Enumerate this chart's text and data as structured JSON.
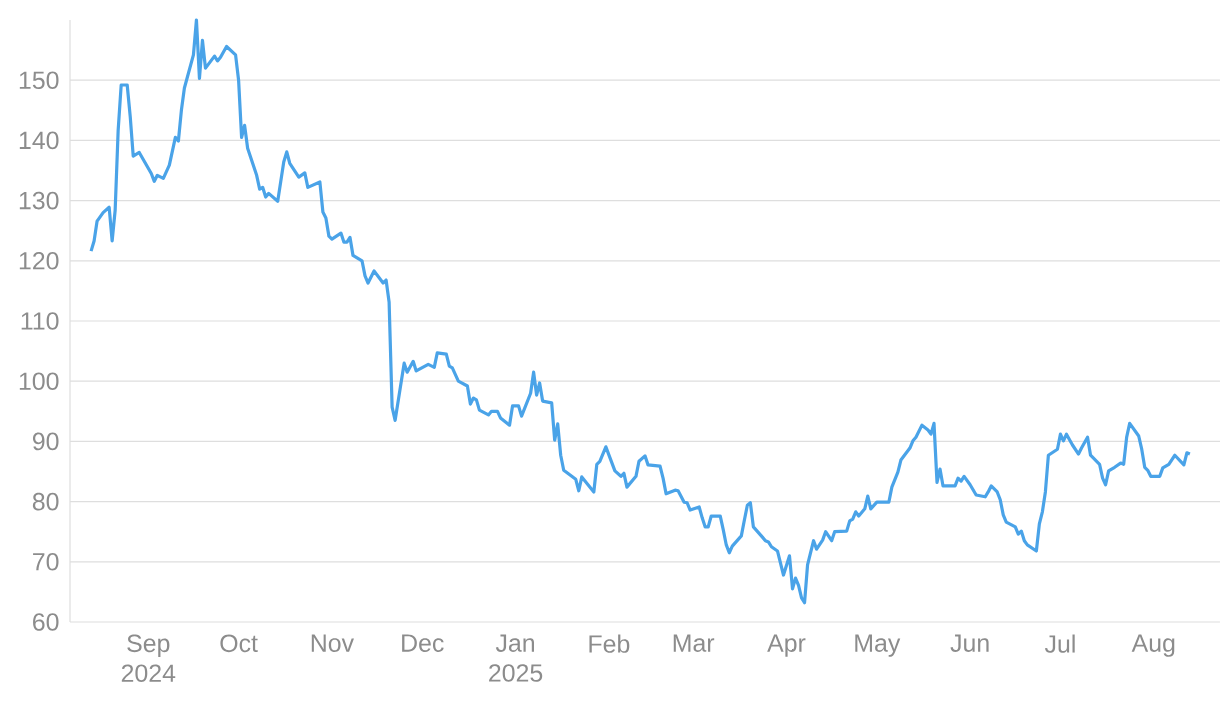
{
  "chart_data": {
    "type": "line",
    "color": "#4aa3e8",
    "grid": "y",
    "xlim": [
      "2024-08-06",
      "2025-08-23"
    ],
    "ylim": [
      60,
      160
    ],
    "yticks": [
      60,
      70,
      80,
      90,
      100,
      110,
      120,
      130,
      140,
      150
    ],
    "xticks": [
      {
        "value": "2024-09-01",
        "label": "Sep 2024"
      },
      {
        "value": "2024-10-01",
        "label": "Oct"
      },
      {
        "value": "2024-11-01",
        "label": "Nov"
      },
      {
        "value": "2024-12-01",
        "label": "Dec"
      },
      {
        "value": "2025-01-01",
        "label": "Jan 2025"
      },
      {
        "value": "2025-02-01",
        "label": "Feb"
      },
      {
        "value": "2025-03-01",
        "label": "Mar"
      },
      {
        "value": "2025-04-01",
        "label": "Apr"
      },
      {
        "value": "2025-05-01",
        "label": "May"
      },
      {
        "value": "2025-06-01",
        "label": "Jun"
      },
      {
        "value": "2025-07-01",
        "label": "Jul"
      },
      {
        "value": "2025-08-01",
        "label": "Aug"
      }
    ],
    "x": [
      "2024-08-13",
      "2024-08-14",
      "2024-08-15",
      "2024-08-17",
      "2024-08-19",
      "2024-08-20",
      "2024-08-21",
      "2024-08-22",
      "2024-08-23",
      "2024-08-25",
      "2024-08-26",
      "2024-08-27",
      "2024-08-29",
      "2024-09-02",
      "2024-09-03",
      "2024-09-04",
      "2024-09-06",
      "2024-09-08",
      "2024-09-10",
      "2024-09-11",
      "2024-09-12",
      "2024-09-13",
      "2024-09-16",
      "2024-09-17",
      "2024-09-18",
      "2024-09-19",
      "2024-09-20",
      "2024-09-23",
      "2024-09-24",
      "2024-09-25",
      "2024-09-27",
      "2024-09-30",
      "2024-10-01",
      "2024-10-02",
      "2024-10-03",
      "2024-10-04",
      "2024-10-07",
      "2024-10-08",
      "2024-10-09",
      "2024-10-10",
      "2024-10-11",
      "2024-10-14",
      "2024-10-16",
      "2024-10-17",
      "2024-10-18",
      "2024-10-21",
      "2024-10-23",
      "2024-10-24",
      "2024-10-28",
      "2024-10-29",
      "2024-10-30",
      "2024-10-31",
      "2024-11-01",
      "2024-11-04",
      "2024-11-05",
      "2024-11-06",
      "2024-11-07",
      "2024-11-08",
      "2024-11-11",
      "2024-11-12",
      "2024-11-13",
      "2024-11-15",
      "2024-11-18",
      "2024-11-19",
      "2024-11-20",
      "2024-11-21",
      "2024-11-22",
      "2024-11-25",
      "2024-11-26",
      "2024-11-28",
      "2024-11-29",
      "2024-12-03",
      "2024-12-05",
      "2024-12-06",
      "2024-12-09",
      "2024-12-10",
      "2024-12-11",
      "2024-12-13",
      "2024-12-16",
      "2024-12-17",
      "2024-12-18",
      "2024-12-19",
      "2024-12-20",
      "2024-12-23",
      "2024-12-24",
      "2024-12-26",
      "2024-12-27",
      "2024-12-30",
      "2024-12-31",
      "2025-01-02",
      "2025-01-03",
      "2025-01-06",
      "2025-01-07",
      "2025-01-08",
      "2025-01-09",
      "2025-01-10",
      "2025-01-13",
      "2025-01-14",
      "2025-01-15",
      "2025-01-16",
      "2025-01-17",
      "2025-01-21",
      "2025-01-22",
      "2025-01-23",
      "2025-01-27",
      "2025-01-28",
      "2025-01-29",
      "2025-01-31",
      "2025-02-03",
      "2025-02-05",
      "2025-02-06",
      "2025-02-07",
      "2025-02-10",
      "2025-02-11",
      "2025-02-13",
      "2025-02-14",
      "2025-02-18",
      "2025-02-19",
      "2025-02-20",
      "2025-02-23",
      "2025-02-24",
      "2025-02-26",
      "2025-02-27",
      "2025-02-28",
      "2025-03-03",
      "2025-03-04",
      "2025-03-05",
      "2025-03-06",
      "2025-03-07",
      "2025-03-10",
      "2025-03-11",
      "2025-03-12",
      "2025-03-13",
      "2025-03-14",
      "2025-03-17",
      "2025-03-18",
      "2025-03-19",
      "2025-03-20",
      "2025-03-21",
      "2025-03-24",
      "2025-03-25",
      "2025-03-26",
      "2025-03-27",
      "2025-03-29",
      "2025-03-31",
      "2025-04-02",
      "2025-04-03",
      "2025-04-04",
      "2025-04-05",
      "2025-04-06",
      "2025-04-07",
      "2025-04-08",
      "2025-04-10",
      "2025-04-11",
      "2025-04-13",
      "2025-04-14",
      "2025-04-16",
      "2025-04-17",
      "2025-04-21",
      "2025-04-22",
      "2025-04-23",
      "2025-04-24",
      "2025-04-25",
      "2025-04-27",
      "2025-04-28",
      "2025-04-29",
      "2025-05-01",
      "2025-05-05",
      "2025-05-06",
      "2025-05-08",
      "2025-05-09",
      "2025-05-12",
      "2025-05-13",
      "2025-05-14",
      "2025-05-16",
      "2025-05-18",
      "2025-05-19",
      "2025-05-20",
      "2025-05-21",
      "2025-05-22",
      "2025-05-23",
      "2025-05-27",
      "2025-05-28",
      "2025-05-29",
      "2025-05-30",
      "2025-06-01",
      "2025-06-03",
      "2025-06-06",
      "2025-06-07",
      "2025-06-08",
      "2025-06-10",
      "2025-06-11",
      "2025-06-12",
      "2025-06-13",
      "2025-06-16",
      "2025-06-17",
      "2025-06-18",
      "2025-06-19",
      "2025-06-20",
      "2025-06-23",
      "2025-06-24",
      "2025-06-25",
      "2025-06-26",
      "2025-06-27",
      "2025-06-30",
      "2025-07-01",
      "2025-07-02",
      "2025-07-03",
      "2025-07-05",
      "2025-07-07",
      "2025-07-08",
      "2025-07-10",
      "2025-07-11",
      "2025-07-14",
      "2025-07-15",
      "2025-07-16",
      "2025-07-17",
      "2025-07-19",
      "2025-07-21",
      "2025-07-22",
      "2025-07-23",
      "2025-07-24",
      "2025-07-27",
      "2025-07-28",
      "2025-07-29",
      "2025-07-30",
      "2025-07-31",
      "2025-08-03",
      "2025-08-04",
      "2025-08-06",
      "2025-08-08",
      "2025-08-11",
      "2025-08-12",
      "2025-08-13"
    ],
    "values": [
      121.6,
      123.3,
      126.6,
      128.0,
      128.9,
      123.3,
      128.4,
      141.7,
      149.2,
      149.2,
      144.0,
      137.4,
      138.0,
      134.5,
      133.2,
      134.2,
      133.7,
      135.9,
      140.5,
      139.9,
      145.0,
      148.7,
      154.2,
      160.0,
      150.3,
      156.6,
      152.0,
      154.0,
      153.2,
      153.8,
      155.6,
      154.2,
      150.0,
      140.5,
      142.5,
      138.7,
      134.2,
      131.9,
      132.2,
      130.6,
      131.2,
      129.9,
      136.4,
      138.1,
      136.2,
      133.9,
      134.6,
      132.2,
      133.1,
      128.1,
      127.1,
      124.1,
      123.6,
      124.6,
      123.1,
      123.1,
      123.9,
      120.9,
      120.0,
      117.5,
      116.3,
      118.3,
      116.3,
      116.8,
      113.1,
      95.7,
      93.5,
      103.0,
      101.5,
      103.3,
      101.7,
      102.8,
      102.3,
      104.7,
      104.5,
      102.5,
      102.2,
      100.0,
      99.2,
      96.2,
      97.2,
      96.9,
      95.2,
      94.4,
      95.0,
      95.0,
      93.9,
      92.7,
      95.9,
      95.9,
      94.2,
      98.0,
      101.5,
      97.7,
      99.7,
      96.7,
      96.4,
      90.2,
      92.9,
      87.7,
      85.2,
      83.7,
      81.8,
      84.1,
      81.6,
      86.2,
      86.7,
      89.1,
      85.1,
      84.2,
      84.7,
      82.4,
      84.2,
      86.7,
      87.6,
      86.1,
      85.9,
      83.9,
      81.3,
      81.9,
      81.8,
      79.9,
      79.8,
      78.6,
      79.1,
      77.3,
      75.8,
      75.8,
      77.6,
      77.6,
      75.3,
      72.8,
      71.5,
      72.6,
      74.3,
      76.9,
      79.4,
      79.8,
      75.8,
      74.1,
      73.5,
      73.3,
      72.5,
      71.8,
      67.8,
      71.0,
      65.5,
      67.3,
      66.1,
      64.0,
      63.2,
      69.5,
      73.5,
      72.1,
      73.6,
      75.0,
      73.5,
      75.0,
      75.1,
      76.8,
      77.1,
      78.3,
      77.6,
      78.8,
      80.9,
      78.8,
      79.9,
      79.9,
      82.4,
      84.9,
      86.9,
      88.9,
      90.1,
      90.7,
      92.7,
      91.9,
      91.2,
      93.0,
      83.2,
      85.4,
      82.6,
      82.6,
      83.9,
      83.4,
      84.2,
      82.8,
      81.1,
      80.8,
      81.6,
      82.6,
      81.6,
      80.3,
      77.8,
      76.6,
      75.8,
      74.6,
      75.1,
      73.5,
      72.8,
      71.8,
      76.3,
      78.3,
      81.6,
      87.7,
      88.7,
      91.2,
      90.1,
      91.2,
      89.4,
      87.9,
      88.9,
      90.7,
      87.7,
      86.2,
      83.9,
      82.8,
      85.1,
      85.7,
      86.4,
      86.2,
      90.7,
      93.0,
      90.9,
      88.7,
      85.7,
      85.2,
      84.2,
      84.2,
      85.6,
      86.2,
      87.7,
      86.1,
      88.1,
      87.9
    ]
  }
}
